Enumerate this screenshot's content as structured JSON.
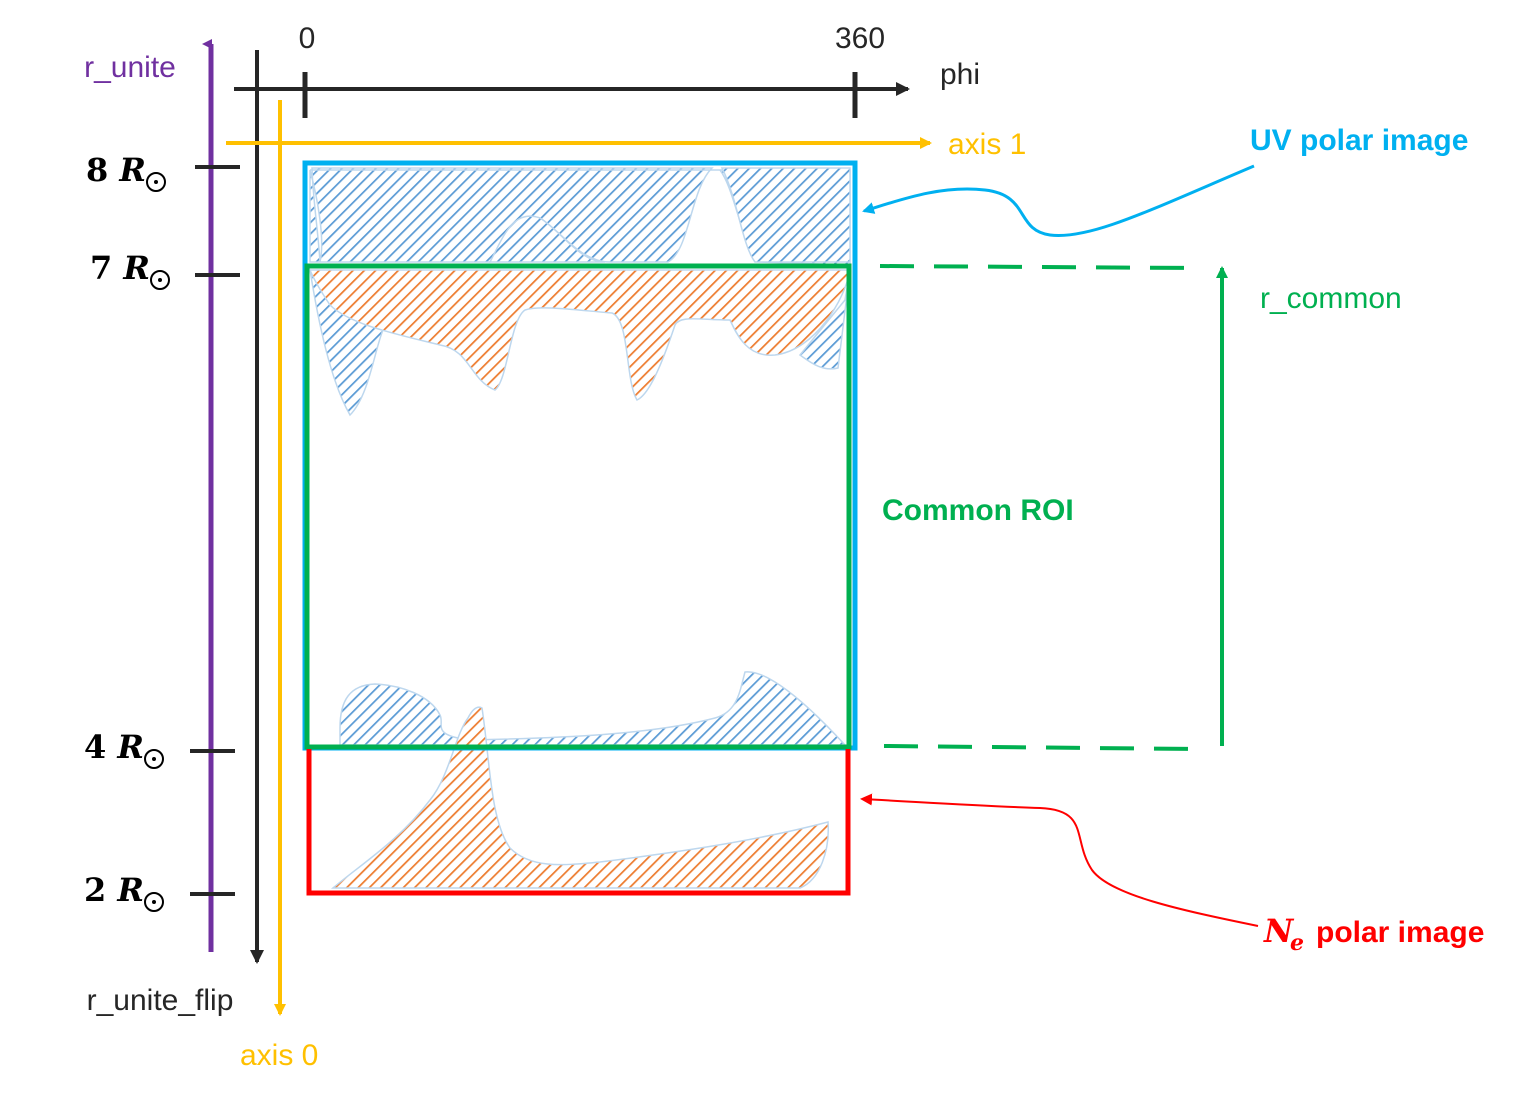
{
  "labels": {
    "r_unite": "r_unite",
    "r_unite_flip": "r_unite_flip",
    "phi": "phi",
    "phi_start": "0",
    "phi_end": "360",
    "axis_1": "axis 1",
    "axis_0": "axis 0",
    "r_common": "r_common",
    "common_roi": "Common ROI",
    "uv_polar_image": "UV polar image",
    "ne_symbol": "N",
    "ne_subscript": "e",
    "ne_polar_image": "polar image"
  },
  "radius_ticks": [
    {
      "value": "8",
      "unit": "R"
    },
    {
      "value": "7",
      "unit": "R"
    },
    {
      "value": "4",
      "unit": "R"
    },
    {
      "value": "2",
      "unit": "R"
    }
  ],
  "colors": {
    "r_unite": "#7030a0",
    "axis": "#262626",
    "axes_yellow": "#ffc000",
    "uv": "#00b0f0",
    "common": "#00b050",
    "ne": "#ff0000",
    "hatch_blue": "#5b9bd5",
    "hatch_orange": "#ed7d31"
  }
}
